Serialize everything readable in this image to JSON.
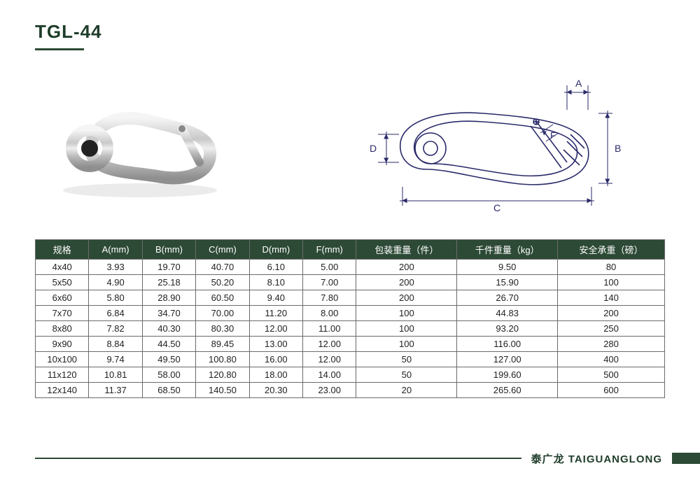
{
  "title": "TGL-44",
  "brand_cn": "泰广龙",
  "brand_en": "TAIGUANGLONG",
  "header_color": "#2d4a36",
  "border_color": "#6a6a6a",
  "text_color": "#222222",
  "diagram": {
    "labels": {
      "A": "A",
      "B": "B",
      "C": "C",
      "D": "D",
      "F": "F"
    },
    "stroke": "#2a2a6a",
    "stroke_width": 1.6
  },
  "table": {
    "columns": [
      "规格",
      "A(mm)",
      "B(mm)",
      "C(mm)",
      "D(mm)",
      "F(mm)",
      "包装重量（件）",
      "千件重量（kg）",
      "安全承重（磅）"
    ],
    "col_widths_pct": [
      8.5,
      8.5,
      8.5,
      8.5,
      8.5,
      8.5,
      16,
      16,
      17
    ],
    "rows": [
      [
        "4x40",
        "3.93",
        "19.70",
        "40.70",
        "6.10",
        "5.00",
        "200",
        "9.50",
        "80"
      ],
      [
        "5x50",
        "4.90",
        "25.18",
        "50.20",
        "8.10",
        "7.00",
        "200",
        "15.90",
        "100"
      ],
      [
        "6x60",
        "5.80",
        "28.90",
        "60.50",
        "9.40",
        "7.80",
        "200",
        "26.70",
        "140"
      ],
      [
        "7x70",
        "6.84",
        "34.70",
        "70.00",
        "11.20",
        "8.00",
        "100",
        "44.83",
        "200"
      ],
      [
        "8x80",
        "7.82",
        "40.30",
        "80.30",
        "12.00",
        "11.00",
        "100",
        "93.20",
        "250"
      ],
      [
        "9x90",
        "8.84",
        "44.50",
        "89.45",
        "13.00",
        "12.00",
        "100",
        "116.00",
        "280"
      ],
      [
        "10x100",
        "9.74",
        "49.50",
        "100.80",
        "16.00",
        "12.00",
        "50",
        "127.00",
        "400"
      ],
      [
        "11x120",
        "10.81",
        "58.00",
        "120.80",
        "18.00",
        "14.00",
        "50",
        "199.60",
        "500"
      ],
      [
        "12x140",
        "11.37",
        "68.50",
        "140.50",
        "20.30",
        "23.00",
        "20",
        "265.60",
        "600"
      ]
    ]
  }
}
